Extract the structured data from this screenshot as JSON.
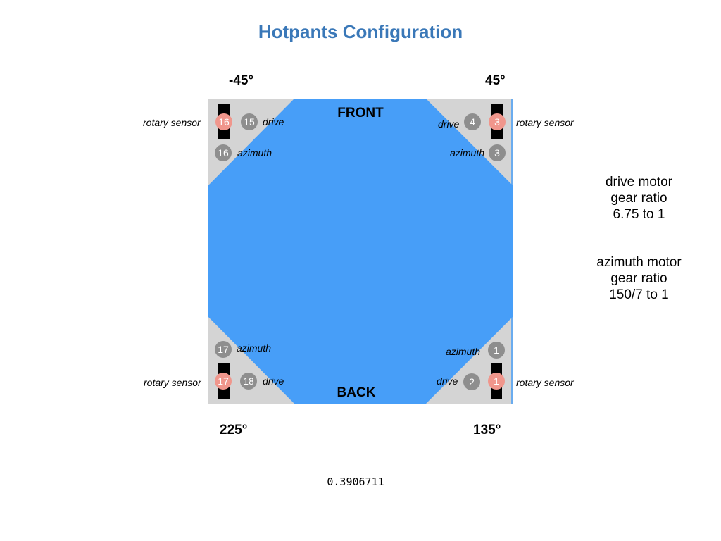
{
  "title": "Hotpants Configuration",
  "angles": {
    "front_left": "-45°",
    "front_right": "45°",
    "back_left": "225°",
    "back_right": "135°"
  },
  "sides": {
    "front": "FRONT",
    "back": "BACK"
  },
  "gear_info": {
    "drive": [
      "drive motor",
      "gear ratio",
      "6.75 to 1"
    ],
    "azimuth": [
      "azimuth motor",
      "gear ratio",
      "150/7 to 1"
    ]
  },
  "readout": "0.3906711",
  "modules": {
    "front_left": {
      "sensor_id": "16",
      "drive_id": "15",
      "azimuth_id": "16",
      "sensor_label": "rotary sensor",
      "drive_label": "drive",
      "azimuth_label": "azimuth"
    },
    "front_right": {
      "sensor_id": "3",
      "drive_id": "4",
      "azimuth_id": "3",
      "sensor_label": "rotary sensor",
      "drive_label": "drive",
      "azimuth_label": "azimuth"
    },
    "back_left": {
      "sensor_id": "17",
      "drive_id": "18",
      "azimuth_id": "17",
      "sensor_label": "rotary sensor",
      "drive_label": "drive",
      "azimuth_label": "azimuth"
    },
    "back_right": {
      "sensor_id": "1",
      "drive_id": "2",
      "azimuth_id": "1",
      "sensor_label": "rotary sensor",
      "drive_label": "drive",
      "azimuth_label": "azimuth"
    }
  },
  "colors": {
    "robot_body": "#479ef8",
    "module_bg": "#d4d4d4",
    "title": "#3a78b8",
    "motor_badge": "#8e8e8e",
    "sensor_badge": "#f0968c"
  }
}
